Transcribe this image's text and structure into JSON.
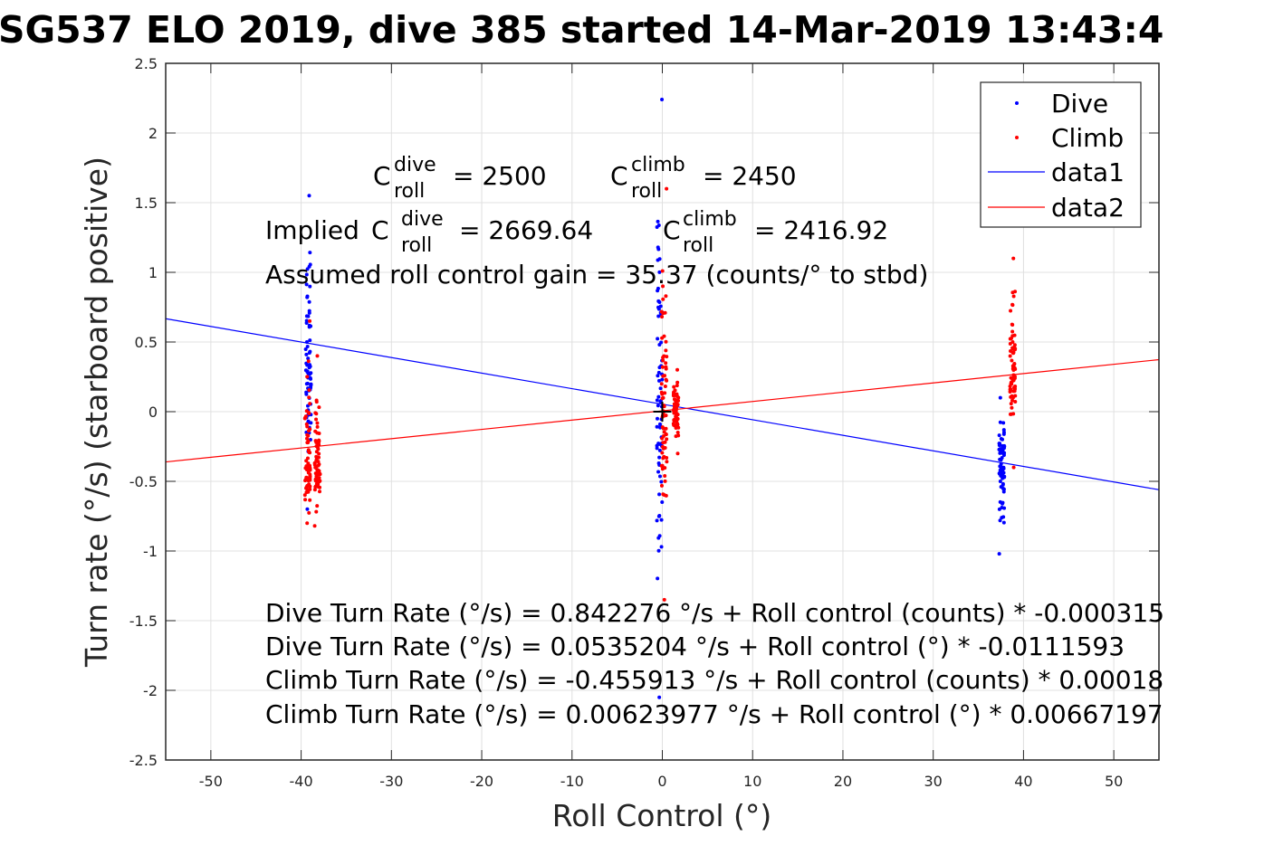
{
  "chart_data": {
    "type": "scatter",
    "title": "SG537 ELO 2019, dive 385 started 14-Mar-2019 13:43:4",
    "xlabel": "Roll Control (°)",
    "ylabel": "Turn rate (°/s) (starboard positive)",
    "xlim": [
      -55,
      55
    ],
    "ylim": [
      -2.5,
      2.5
    ],
    "grid": true,
    "x_ticks": [
      -50,
      -40,
      -30,
      -20,
      -10,
      0,
      10,
      20,
      30,
      40,
      50
    ],
    "x_tick_labels": [
      "-50",
      "-40",
      "-30",
      "-20",
      "-10",
      "0",
      "10",
      "20",
      "30",
      "40",
      "50"
    ],
    "y_ticks": [
      2.5,
      2,
      1.5,
      1,
      0.5,
      0,
      -0.5,
      -1,
      -1.5,
      -2,
      -2.5
    ],
    "y_tick_labels": [
      "2.5",
      "2",
      "1.5",
      "1",
      "0.5",
      "0",
      "-0.5",
      "-1",
      "-1.5",
      "-2",
      "-2.5"
    ],
    "legend": {
      "placement": "top-right",
      "entries": [
        {
          "label": "Dive",
          "kind": "marker",
          "color": "#0000ff"
        },
        {
          "label": "Climb",
          "kind": "marker",
          "color": "#ff0000"
        },
        {
          "label": "data1",
          "kind": "line",
          "color": "#0000ff"
        },
        {
          "label": "data2",
          "kind": "line",
          "color": "#ff0000"
        }
      ]
    },
    "series": [
      {
        "name": "Dive",
        "kind": "scatter",
        "color": "#0000ff",
        "clusters": [
          {
            "x": -39.2,
            "y_min": -0.7,
            "y_max": 1.55,
            "y_center": 0.3
          },
          {
            "x": -0.3,
            "y_min": -2.05,
            "y_max": 2.24,
            "y_center": 0.05
          },
          {
            "x": 37.6,
            "y_min": -1.02,
            "y_max": 0.1,
            "y_center": -0.35
          }
        ]
      },
      {
        "name": "Climb",
        "kind": "scatter",
        "color": "#ff0000",
        "clusters": [
          {
            "x": -39.3,
            "y_min": -0.8,
            "y_max": 0.65,
            "y_center": -0.35
          },
          {
            "x": -38.2,
            "y_min": -0.82,
            "y_max": 0.4,
            "y_center": -0.4
          },
          {
            "x": 0.2,
            "y_min": -1.35,
            "y_max": 1.6,
            "y_center": 0.05
          },
          {
            "x": 1.5,
            "y_min": -0.3,
            "y_max": 0.3,
            "y_center": 0.0
          },
          {
            "x": 38.8,
            "y_min": -0.4,
            "y_max": 1.1,
            "y_center": 0.25
          }
        ]
      },
      {
        "name": "data1",
        "kind": "line",
        "color": "#0000ff",
        "intercept": 0.0535204,
        "slope": -0.0111593
      },
      {
        "name": "data2",
        "kind": "line",
        "color": "#ff0000",
        "intercept": 0.00623977,
        "slope": 0.00667197
      }
    ],
    "marker_origin": {
      "x": 0,
      "y": 0,
      "symbol": "+"
    },
    "annotations": {
      "c_roll_dive": {
        "prefix": "C",
        "sup": "dive",
        "sub": "roll",
        "value": "= 2500"
      },
      "c_roll_climb": {
        "prefix": "C",
        "sup": "climb",
        "sub": "roll",
        "value": "= 2450"
      },
      "implied_label": "Implied",
      "implied_dive": {
        "prefix": "C",
        "sup": "dive",
        "sub": "roll",
        "value": "= 2669.64"
      },
      "implied_climb": {
        "prefix": "C",
        "sup": "climb",
        "sub": "roll",
        "value": "= 2416.92"
      },
      "gain": "Assumed roll control gain = 35.37 (counts/° to stbd)",
      "equations": [
        "Dive Turn Rate (°/s) = 0.842276 °/s + Roll control (counts) * -0.000315",
        "Dive Turn Rate (°/s) = 0.0535204 °/s + Roll control (°) * -0.0111593",
        "Climb Turn Rate (°/s) = -0.455913 °/s + Roll control (counts) * 0.00018",
        "Climb Turn Rate (°/s) = 0.00623977 °/s + Roll control (°) * 0.00667197"
      ]
    }
  }
}
